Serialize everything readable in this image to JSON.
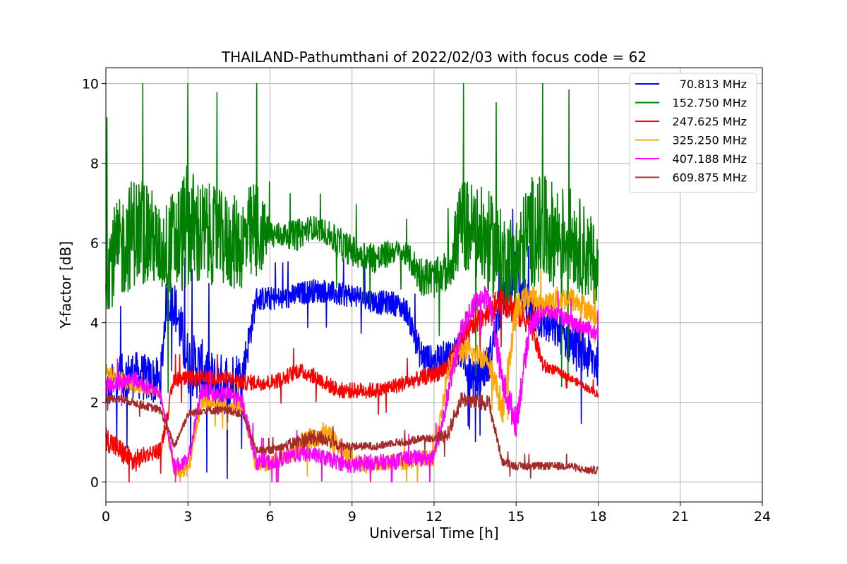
{
  "chart_data": {
    "type": "line",
    "title": "THAILAND-Pathumthani of 2022/02/03 with focus code = 62",
    "xlabel": "Universal Time [h]",
    "ylabel": "Y-factor [dB]",
    "xlim": [
      0,
      24
    ],
    "ylim": [
      -0.5,
      10.4
    ],
    "xticks": [
      "0",
      "3",
      "6",
      "9",
      "12",
      "15",
      "18",
      "21",
      "24"
    ],
    "yticks": [
      "0",
      "2",
      "4",
      "6",
      "8",
      "10"
    ],
    "grid": true,
    "legend_position": "top-right",
    "series": [
      {
        "name": "70.813 MHz",
        "color": "#0000ff",
        "x": [
          0,
          0.5,
          1,
          1.5,
          2,
          2.2,
          2.5,
          3,
          3.5,
          4,
          4.5,
          5,
          5.5,
          6,
          6.5,
          7,
          7.5,
          8,
          8.5,
          9,
          9.5,
          10,
          10.5,
          11,
          11.5,
          12,
          12.5,
          13,
          13.5,
          14,
          14.5,
          15,
          15.5,
          16,
          16.5,
          17,
          17.5,
          18
        ],
        "values": [
          2.3,
          2.6,
          2.7,
          2.6,
          2.5,
          4.5,
          4.5,
          3.0,
          2.8,
          2.4,
          2.5,
          2.7,
          4.6,
          4.6,
          4.6,
          4.7,
          4.8,
          4.8,
          4.7,
          4.7,
          4.6,
          4.5,
          4.5,
          4.3,
          3.2,
          3.0,
          3.2,
          3.3,
          2.5,
          3.0,
          4.6,
          5.3,
          4.3,
          4.0,
          3.8,
          3.5,
          3.2,
          3.0
        ],
        "spread": [
          0.5,
          0.6,
          0.6,
          0.6,
          0.6,
          0.5,
          0.6,
          0.8,
          0.8,
          0.8,
          0.8,
          0.6,
          0.3,
          0.3,
          0.3,
          0.3,
          0.3,
          0.3,
          0.3,
          0.3,
          0.3,
          0.3,
          0.3,
          0.3,
          0.4,
          0.4,
          0.4,
          0.5,
          0.5,
          0.5,
          0.5,
          0.6,
          0.5,
          0.5,
          0.5,
          0.6,
          0.6,
          0.6
        ]
      },
      {
        "name": "152.750 MHz",
        "color": "#008000",
        "x": [
          0,
          0.5,
          1,
          1.5,
          2,
          2.5,
          3,
          3.5,
          4,
          4.5,
          5,
          5.5,
          6,
          6.5,
          7,
          7.5,
          8,
          8.5,
          9,
          9.5,
          10,
          10.5,
          11,
          11.5,
          12,
          12.5,
          13,
          13.5,
          14,
          14.5,
          15,
          15.5,
          16,
          16.5,
          17,
          17.5,
          18
        ],
        "values": [
          5.5,
          5.8,
          6.3,
          6.3,
          5.8,
          6.0,
          6.4,
          6.2,
          6.2,
          6.0,
          6.0,
          6.3,
          6.2,
          6.2,
          6.2,
          6.4,
          6.3,
          6.0,
          5.8,
          5.7,
          5.6,
          5.8,
          5.7,
          5.2,
          5.1,
          5.3,
          6.5,
          6.3,
          6.0,
          5.6,
          5.5,
          6.3,
          6.3,
          6.2,
          6.2,
          5.8,
          5.3
        ],
        "spread": [
          1.2,
          1.3,
          1.4,
          1.4,
          1.0,
          1.4,
          1.6,
          1.4,
          1.2,
          1.2,
          1.2,
          1.4,
          0.4,
          0.3,
          0.4,
          0.3,
          0.3,
          0.4,
          0.4,
          0.4,
          0.4,
          0.3,
          0.3,
          0.5,
          0.5,
          0.5,
          1.2,
          1.2,
          1.3,
          1.2,
          1.2,
          1.4,
          1.4,
          1.3,
          1.2,
          1.2,
          1.0
        ]
      },
      {
        "name": "247.625 MHz",
        "color": "#ff0000",
        "x": [
          0,
          0.5,
          1,
          1.5,
          2,
          2.5,
          3,
          3.5,
          4,
          4.5,
          5,
          5.5,
          6,
          6.5,
          7,
          7.5,
          8,
          8.5,
          9,
          9.5,
          10,
          10.5,
          11,
          11.5,
          12,
          12.5,
          13,
          13.5,
          14,
          14.5,
          15,
          15.5,
          16,
          16.5,
          17,
          17.5,
          18
        ],
        "values": [
          1.1,
          0.8,
          0.5,
          0.7,
          0.8,
          2.6,
          2.6,
          2.6,
          2.6,
          2.6,
          2.5,
          2.5,
          2.5,
          2.6,
          2.8,
          2.7,
          2.5,
          2.3,
          2.3,
          2.3,
          2.3,
          2.4,
          2.5,
          2.6,
          2.7,
          2.9,
          3.5,
          4.0,
          4.3,
          4.6,
          4.3,
          4.0,
          2.9,
          2.8,
          2.6,
          2.4,
          2.2
        ],
        "spread": [
          0.3,
          0.3,
          0.3,
          0.2,
          0.2,
          0.2,
          0.2,
          0.2,
          0.2,
          0.2,
          0.2,
          0.2,
          0.2,
          0.2,
          0.2,
          0.2,
          0.2,
          0.2,
          0.2,
          0.2,
          0.2,
          0.2,
          0.2,
          0.2,
          0.2,
          0.3,
          0.3,
          0.3,
          0.3,
          0.4,
          0.4,
          0.3,
          0.2,
          0.1,
          0.1,
          0.1,
          0.1
        ]
      },
      {
        "name": "325.250 MHz",
        "color": "#ffa500",
        "x": [
          0,
          0.5,
          1,
          1.5,
          2,
          2.5,
          3,
          3.5,
          4,
          4.5,
          5,
          5.5,
          6,
          6.5,
          7,
          7.5,
          8,
          8.5,
          9,
          9.5,
          10,
          10.5,
          11,
          11.5,
          12,
          12.5,
          13,
          13.5,
          14,
          14.5,
          15,
          15.5,
          16,
          16.5,
          17,
          17.5,
          18
        ],
        "values": [
          2.8,
          2.6,
          2.4,
          2.3,
          2.2,
          0.3,
          0.3,
          2.0,
          2.0,
          1.9,
          1.9,
          0.4,
          0.5,
          0.6,
          0.9,
          1.1,
          1.2,
          0.9,
          0.6,
          0.4,
          0.5,
          0.5,
          0.5,
          0.6,
          0.6,
          2.8,
          3.3,
          3.2,
          3.1,
          1.8,
          4.3,
          4.7,
          4.4,
          4.6,
          4.6,
          4.4,
          4.1
        ],
        "spread": [
          0.2,
          0.2,
          0.2,
          0.1,
          0.1,
          0.2,
          0.2,
          0.2,
          0.2,
          0.2,
          0.2,
          0.2,
          0.2,
          0.2,
          0.3,
          0.3,
          0.3,
          0.3,
          0.2,
          0.2,
          0.2,
          0.2,
          0.2,
          0.2,
          0.2,
          0.3,
          0.3,
          0.3,
          0.3,
          0.4,
          0.4,
          0.3,
          0.3,
          0.3,
          0.3,
          0.3,
          0.2
        ]
      },
      {
        "name": "407.188 MHz",
        "color": "#ff00ff",
        "x": [
          0,
          0.5,
          1,
          1.5,
          2,
          2.5,
          3,
          3.5,
          4,
          4.5,
          5,
          5.5,
          6,
          6.5,
          7,
          7.5,
          8,
          8.5,
          9,
          9.5,
          10,
          10.5,
          11,
          11.5,
          12,
          12.5,
          13,
          13.5,
          14,
          14.5,
          15,
          15.5,
          16,
          16.5,
          17,
          17.5,
          18
        ],
        "values": [
          2.4,
          2.5,
          2.6,
          2.4,
          2.2,
          0.4,
          0.5,
          2.3,
          2.2,
          2.2,
          2.0,
          0.5,
          0.5,
          0.6,
          0.7,
          0.7,
          0.6,
          0.5,
          0.4,
          0.5,
          0.5,
          0.5,
          0.6,
          0.6,
          0.6,
          2.2,
          3.8,
          4.5,
          4.7,
          2.5,
          1.5,
          3.9,
          4.3,
          4.2,
          4.0,
          3.9,
          3.7
        ],
        "spread": [
          0.2,
          0.2,
          0.2,
          0.2,
          0.1,
          0.2,
          0.2,
          0.2,
          0.2,
          0.2,
          0.2,
          0.2,
          0.2,
          0.2,
          0.2,
          0.2,
          0.2,
          0.2,
          0.2,
          0.2,
          0.2,
          0.2,
          0.2,
          0.2,
          0.2,
          0.3,
          0.3,
          0.3,
          0.3,
          0.4,
          0.4,
          0.3,
          0.2,
          0.2,
          0.2,
          0.2,
          0.2
        ]
      },
      {
        "name": "609.875 MHz",
        "color": "#a52a2a",
        "x": [
          0,
          0.5,
          1,
          1.5,
          2,
          2.5,
          3,
          3.5,
          4,
          4.5,
          5,
          5.5,
          6,
          6.5,
          7,
          7.5,
          8,
          8.5,
          9,
          9.5,
          10,
          10.5,
          11,
          11.5,
          12,
          12.5,
          13,
          13.5,
          14,
          14.5,
          15,
          15.5,
          16,
          16.5,
          17,
          17.5,
          18
        ],
        "values": [
          2.1,
          2.1,
          2.0,
          1.9,
          1.8,
          0.9,
          1.7,
          1.8,
          1.8,
          1.8,
          1.7,
          0.8,
          0.8,
          0.9,
          1.0,
          1.1,
          1.1,
          0.9,
          0.9,
          0.9,
          0.9,
          1.0,
          1.0,
          1.1,
          1.1,
          1.2,
          2.1,
          2.0,
          2.0,
          0.5,
          0.4,
          0.4,
          0.4,
          0.4,
          0.4,
          0.3,
          0.3
        ],
        "spread": [
          0.1,
          0.1,
          0.1,
          0.1,
          0.1,
          0.1,
          0.1,
          0.1,
          0.1,
          0.1,
          0.1,
          0.1,
          0.1,
          0.1,
          0.2,
          0.2,
          0.2,
          0.1,
          0.1,
          0.1,
          0.1,
          0.1,
          0.1,
          0.1,
          0.1,
          0.2,
          0.2,
          0.2,
          0.2,
          0.1,
          0.1,
          0.1,
          0.1,
          0.1,
          0.1,
          0.1,
          0.1
        ]
      }
    ]
  }
}
